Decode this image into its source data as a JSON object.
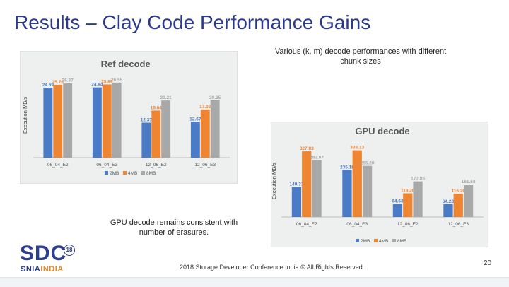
{
  "slide": {
    "title": "Results – Clay Code Performance Gains",
    "note_top": "Various (k, m) decode performances with different chunk sizes",
    "note_bottom": "GPU decode remains consistent with number of erasures.",
    "footer": "2018 Storage Developer Conference India © All Rights Reserved.",
    "page_number": "20",
    "logo": {
      "brand": "SDC",
      "year": "18",
      "org": "SNIA",
      "region": "INDIA"
    }
  },
  "colors": {
    "title": "#2b3a8c",
    "series_2mb": "#4a7bc6",
    "series_4mb": "#ee8533",
    "series_8mb": "#a8a8a8",
    "panel": "#eef0f0"
  },
  "chart_data": [
    {
      "type": "bar",
      "title": "Ref decode",
      "ylabel": "Execution MB/s",
      "categories": [
        "06_04_E2",
        "06_04_E3",
        "12_06_E2",
        "12_06_E3"
      ],
      "series": [
        {
          "name": "2MB",
          "values": [
            24.69,
            24.84,
            12.37,
            12.67
          ]
        },
        {
          "name": "4MB",
          "values": [
            25.76,
            25.89,
            16.64,
            17.02
          ]
        },
        {
          "name": "8MB",
          "values": [
            26.37,
            26.55,
            20.21,
            20.25
          ]
        }
      ],
      "data_labels": [
        [
          "24.69",
          "24.84",
          "12.37",
          "12.67"
        ],
        [
          "25.76",
          "25.89",
          "16.64",
          "17.02"
        ],
        [
          "26.37",
          "26.55",
          "20.21",
          "20.25"
        ]
      ],
      "ylim": [
        0,
        30
      ],
      "legend": "bottom"
    },
    {
      "type": "bar",
      "title": "GPU decode",
      "ylabel": "Execution MB/s",
      "categories": [
        "06_04_E2",
        "06_04_E3",
        "12_06_E2",
        "12_06_E3"
      ],
      "series": [
        {
          "name": "2MB",
          "values": [
            149.31,
            235.18,
            64.63,
            64.2
          ]
        },
        {
          "name": "4MB",
          "values": [
            327.83,
            333.13,
            118.2,
            116.2
          ]
        },
        {
          "name": "8MB",
          "values": [
            283.97,
            255.2,
            177.85,
            161.58
          ]
        }
      ],
      "data_labels": [
        [
          "149.31",
          "235.18",
          "64.63",
          "64.20"
        ],
        [
          "327.83",
          "333.13",
          "118.20",
          "116.20"
        ],
        [
          "283.97",
          "255.20",
          "177.85",
          "161.58"
        ]
      ],
      "ylim": [
        0,
        360
      ],
      "legend": "bottom"
    }
  ]
}
